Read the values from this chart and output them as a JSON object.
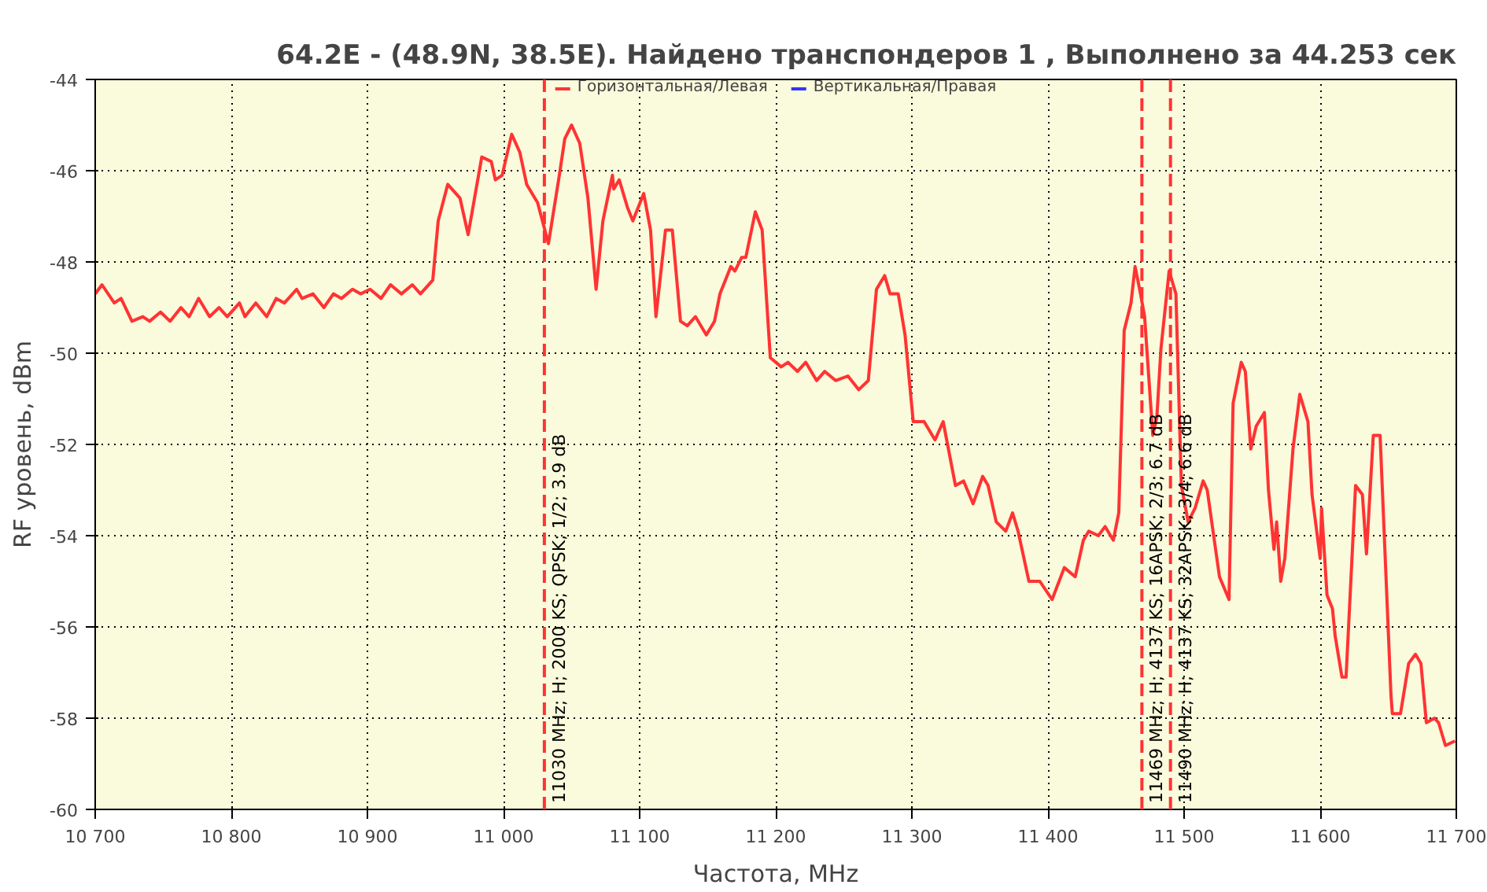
{
  "chart_data": {
    "type": "line",
    "title": "64.2E - (48.9N, 38.5E). Найдено транспондеров 1 , Выполнено за 44.253 сек",
    "xlabel": "Частота, MHz",
    "ylabel": "RF уровень, dBm",
    "x": [
      10700,
      10705,
      10714,
      10719,
      10727,
      10735,
      10740,
      10748,
      10755,
      10763,
      10769,
      10776,
      10784,
      10791,
      10797,
      10806,
      10810,
      10818,
      10826,
      10833,
      10839,
      10848,
      10852,
      10860,
      10868,
      10875,
      10881,
      10889,
      10895,
      10902,
      10910,
      10917,
      10925,
      10933,
      10939,
      10948,
      10952,
      10959,
      10968,
      10974,
      10984,
      10991,
      10994,
      10999,
      11006,
      11012,
      11017,
      11025,
      11033,
      11041,
      11045,
      11050,
      11056,
      11062,
      11068,
      11073,
      11080,
      11081,
      11085,
      11091,
      11095,
      11103,
      11108,
      11112,
      11119,
      11124,
      11130,
      11135,
      11141,
      11149,
      11155,
      11159,
      11163,
      11167,
      11170,
      11175,
      11178,
      11185,
      11190,
      11196,
      11204,
      11209,
      11216,
      11222,
      11230,
      11236,
      11244,
      11253,
      11261,
      11268,
      11274,
      11280,
      11284,
      11290,
      11295,
      11301,
      11309,
      11317,
      11323,
      11332,
      11338,
      11345,
      11352,
      11356,
      11362,
      11369,
      11374,
      11378,
      11386,
      11394,
      11403,
      11412,
      11420,
      11426,
      11430,
      11437,
      11442,
      11448,
      11452,
      11456,
      11461,
      11464,
      11468,
      11471,
      11477,
      11480,
      11483,
      11489,
      11494,
      11498,
      11503,
      11508,
      11514,
      11517,
      11526,
      11533,
      11536,
      11542,
      11545,
      11549,
      11553,
      11559,
      11562,
      11566,
      11568,
      11571,
      11574,
      11580,
      11585,
      11591,
      11594,
      11600,
      11601,
      11605,
      11609,
      11611,
      11616,
      11619,
      11626,
      11631,
      11634,
      11639,
      11644,
      11652,
      11653,
      11659,
      11665,
      11670,
      11674,
      11678,
      11684,
      11687,
      11692,
      11699
    ],
    "series": [
      {
        "name": "Горизонтальная/Левая",
        "color": "#ff3333",
        "values": [
          -48.7,
          -48.5,
          -48.9,
          -48.8,
          -49.3,
          -49.2,
          -49.3,
          -49.1,
          -49.3,
          -49.0,
          -49.2,
          -48.8,
          -49.2,
          -49.0,
          -49.2,
          -48.9,
          -49.2,
          -48.9,
          -49.2,
          -48.8,
          -48.9,
          -48.6,
          -48.8,
          -48.7,
          -49.0,
          -48.7,
          -48.8,
          -48.6,
          -48.7,
          -48.6,
          -48.8,
          -48.5,
          -48.7,
          -48.5,
          -48.7,
          -48.4,
          -47.1,
          -46.3,
          -46.6,
          -47.4,
          -45.7,
          -45.8,
          -46.2,
          -46.1,
          -45.2,
          -45.6,
          -46.3,
          -46.7,
          -47.6,
          -46.1,
          -45.3,
          -45.0,
          -45.4,
          -46.6,
          -48.6,
          -47.1,
          -46.1,
          -46.4,
          -46.2,
          -46.8,
          -47.1,
          -46.5,
          -47.3,
          -49.2,
          -47.3,
          -47.3,
          -49.3,
          -49.4,
          -49.2,
          -49.6,
          -49.3,
          -48.7,
          -48.4,
          -48.1,
          -48.2,
          -47.9,
          -47.9,
          -46.9,
          -47.3,
          -50.1,
          -50.3,
          -50.2,
          -50.4,
          -50.2,
          -50.6,
          -50.4,
          -50.6,
          -50.5,
          -50.8,
          -50.6,
          -48.6,
          -48.3,
          -48.7,
          -48.7,
          -49.6,
          -51.5,
          -51.5,
          -51.9,
          -51.5,
          -52.9,
          -52.8,
          -53.3,
          -52.7,
          -52.9,
          -53.7,
          -53.9,
          -53.5,
          -53.9,
          -55.0,
          -55.0,
          -55.4,
          -54.7,
          -54.9,
          -54.1,
          -53.9,
          -54.0,
          -53.8,
          -54.1,
          -53.5,
          -49.5,
          -48.9,
          -48.1,
          -48.7,
          -49.2,
          -51.8,
          -51.4,
          -49.9,
          -48.2,
          -48.7,
          -52.9,
          -53.7,
          -53.4,
          -52.8,
          -53.0,
          -54.9,
          -55.4,
          -51.1,
          -50.2,
          -50.4,
          -52.1,
          -51.6,
          -51.3,
          -53.0,
          -54.3,
          -53.7,
          -55.0,
          -54.5,
          -52.1,
          -50.9,
          -51.5,
          -53.1,
          -54.5,
          -53.4,
          -55.3,
          -55.6,
          -56.2,
          -57.1,
          -57.1,
          -52.9,
          -53.1,
          -54.4,
          -51.8,
          -51.8,
          -57.5,
          -57.9,
          -57.9,
          -56.8,
          -56.6,
          -56.8,
          -58.1,
          -58.0,
          -58.1,
          -58.6,
          -58.5
        ]
      },
      {
        "name": "Вертикальная/Правая",
        "color": "#3333ff",
        "values": [
          null,
          null,
          null,
          null,
          null,
          null,
          null,
          null,
          null,
          null,
          null,
          null,
          null,
          null,
          null,
          null,
          null,
          null,
          null,
          null,
          null,
          null,
          null,
          null,
          null,
          null,
          null,
          null,
          null,
          null,
          null,
          null,
          null,
          null,
          null,
          null,
          null,
          null,
          null,
          null,
          null,
          null,
          null,
          null,
          null,
          null,
          null,
          null,
          null,
          null,
          null,
          null,
          null,
          null,
          null,
          null,
          null,
          null,
          null,
          null,
          null,
          null,
          null,
          null,
          null,
          null,
          null,
          null,
          null,
          null,
          null,
          null,
          null,
          null,
          null,
          null,
          null,
          null,
          null,
          null,
          null,
          null,
          null,
          null,
          null,
          null,
          null,
          null,
          null,
          null,
          null,
          null,
          null,
          null,
          null,
          null,
          null,
          null,
          null,
          null,
          null,
          null,
          null,
          null,
          null,
          null,
          null,
          null,
          null,
          null,
          null,
          null,
          null,
          null,
          null,
          null,
          null,
          null,
          null,
          null,
          null,
          null,
          null,
          null,
          null,
          null,
          null,
          null,
          null,
          null,
          null,
          null,
          null,
          null,
          null,
          null,
          null,
          null,
          null,
          null,
          null,
          null,
          null,
          null,
          null,
          null,
          null,
          null,
          null,
          null,
          null,
          null,
          null,
          null,
          null,
          null,
          null,
          null,
          null,
          null,
          null,
          null,
          null,
          null,
          null,
          null,
          null,
          null,
          null,
          null,
          null,
          null,
          null,
          null
        ]
      }
    ],
    "xlim": [
      10700,
      11700
    ],
    "xticks": [
      {
        "value": 10700,
        "label": "10 700"
      },
      {
        "value": 10800,
        "label": "10 800"
      },
      {
        "value": 10900,
        "label": "10 900"
      },
      {
        "value": 11000,
        "label": "11 000"
      },
      {
        "value": 11100,
        "label": "11 100"
      },
      {
        "value": 11200,
        "label": "11 200"
      },
      {
        "value": 11300,
        "label": "11 300"
      },
      {
        "value": 11400,
        "label": "11 400"
      },
      {
        "value": 11500,
        "label": "11 500"
      },
      {
        "value": 11600,
        "label": "11 600"
      },
      {
        "value": 11700,
        "label": "11 700"
      }
    ],
    "ylim": [
      -60,
      -44
    ],
    "yticks": [
      -60,
      -58,
      -56,
      -54,
      -52,
      -50,
      -48,
      -46,
      -44
    ],
    "ref_lines": [
      {
        "axis": "x",
        "value": 11030,
        "label": "11030 MHz; H; 2000 KS; QPSK; 1/2; 3.9 dB",
        "color": "#ff3333",
        "line_style": "dashed"
      },
      {
        "axis": "x",
        "value": 11469,
        "label": "11469 MHz; H; 4137 KS; 16APSK; 2/3; 6.7 dB",
        "color": "#ff3333",
        "line_style": "dashed"
      },
      {
        "axis": "x",
        "value": 11490,
        "label": "11490 MHz; H; 4137 KS; 32APSK; 3/4; 6.6 dB",
        "color": "#ff3333",
        "line_style": "dashed"
      }
    ],
    "grid": true,
    "legend": "top",
    "marker": "none",
    "line_style": "solid"
  }
}
